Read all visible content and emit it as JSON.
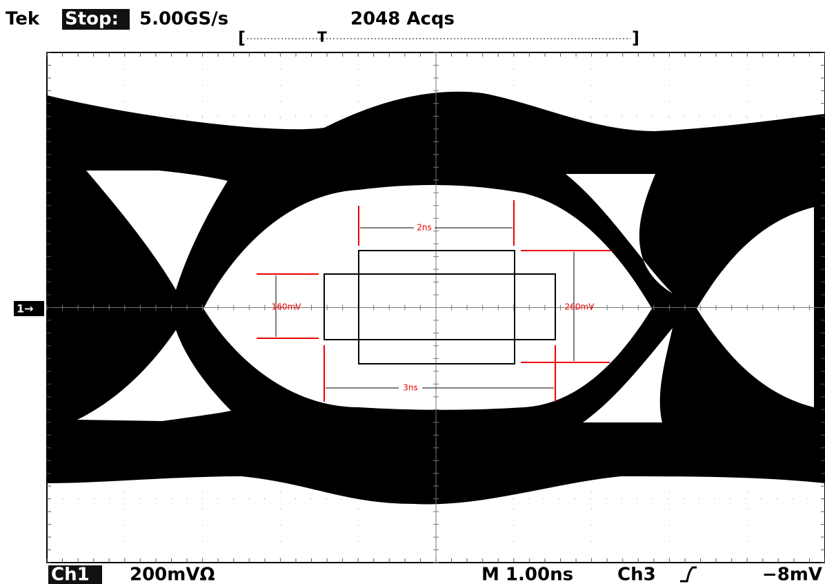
{
  "header": {
    "brand": "Tek",
    "state": "Stop:",
    "sample_rate": "5.00GS/s",
    "acquisitions": "2048 Acqs",
    "trigger_position": "T"
  },
  "channel_marker": "1→",
  "annotations": {
    "inner_width": "2ns",
    "outer_width": "3ns",
    "outer_height": "160mV",
    "inner_height": "260mV"
  },
  "footer": {
    "channel": "Ch1",
    "scale": "200mVΩ",
    "timebase": "M 1.00ns",
    "trigger_source": "Ch3",
    "trigger_level": "−8mV"
  }
}
